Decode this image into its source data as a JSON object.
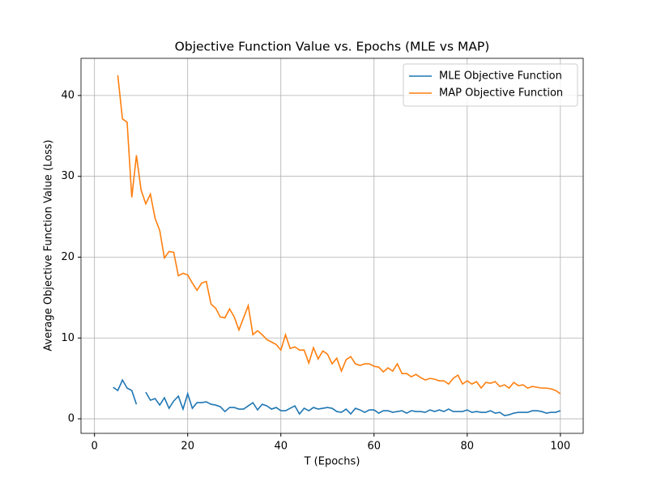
{
  "chart_data": {
    "type": "line",
    "title": "Objective Function Value vs. Epochs (MLE vs MAP)",
    "x_label": "T (Epochs)",
    "y_label": "Average Objective Function Value (Loss)",
    "x": [
      4,
      5,
      6,
      7,
      8,
      9,
      10,
      11,
      12,
      13,
      14,
      15,
      16,
      17,
      18,
      19,
      20,
      21,
      22,
      23,
      24,
      25,
      26,
      27,
      28,
      29,
      30,
      31,
      32,
      33,
      34,
      35,
      36,
      37,
      38,
      39,
      40,
      41,
      42,
      43,
      44,
      45,
      46,
      47,
      48,
      49,
      50,
      51,
      52,
      53,
      54,
      55,
      56,
      57,
      58,
      59,
      60,
      61,
      62,
      63,
      64,
      65,
      66,
      67,
      68,
      69,
      70,
      71,
      72,
      73,
      74,
      75,
      76,
      77,
      78,
      79,
      80,
      81,
      82,
      83,
      84,
      85,
      86,
      87,
      88,
      89,
      90,
      91,
      92,
      93,
      94,
      95,
      96,
      97,
      98,
      99,
      100
    ],
    "series": [
      {
        "name": "MLE Objective Function",
        "color": "#1f77b4",
        "values": [
          3.9,
          3.5,
          4.8,
          3.8,
          3.5,
          1.8,
          null,
          3.3,
          2.3,
          2.5,
          1.7,
          2.6,
          1.3,
          2.2,
          2.8,
          1.2,
          3.1,
          1.3,
          2.0,
          2.0,
          2.1,
          1.8,
          1.7,
          1.5,
          0.9,
          1.4,
          1.4,
          1.2,
          1.2,
          1.6,
          2.0,
          1.1,
          1.8,
          1.6,
          1.2,
          1.4,
          1.0,
          1.0,
          1.3,
          1.6,
          0.6,
          1.3,
          1.0,
          1.4,
          1.2,
          1.3,
          1.4,
          1.3,
          0.9,
          0.8,
          1.2,
          0.6,
          1.3,
          1.1,
          0.8,
          1.1,
          1.1,
          0.7,
          1.0,
          1.0,
          0.8,
          0.9,
          1.0,
          0.7,
          1.0,
          0.9,
          0.9,
          0.8,
          1.1,
          0.9,
          1.1,
          0.9,
          1.2,
          0.9,
          0.9,
          0.9,
          1.1,
          0.8,
          0.9,
          0.8,
          0.8,
          1.0,
          0.7,
          0.8,
          0.4,
          0.5,
          0.7,
          0.8,
          0.8,
          0.8,
          1.0,
          1.0,
          0.9,
          0.7,
          0.8,
          0.8,
          1.0
        ]
      },
      {
        "name": "MAP Objective Function",
        "color": "#ff7f0e",
        "values": [
          null,
          42.5,
          37.1,
          36.7,
          27.4,
          32.6,
          28.3,
          26.6,
          27.8,
          24.8,
          23.3,
          19.9,
          20.7,
          20.6,
          17.7,
          18.0,
          17.8,
          16.8,
          15.9,
          16.8,
          17.0,
          14.2,
          13.7,
          12.6,
          12.5,
          13.6,
          12.6,
          11.0,
          12.5,
          14.0,
          10.4,
          10.9,
          10.4,
          9.8,
          9.5,
          9.2,
          8.5,
          10.4,
          8.7,
          8.9,
          8.5,
          8.5,
          6.9,
          8.8,
          7.4,
          8.4,
          8.0,
          6.8,
          7.5,
          5.9,
          7.3,
          7.7,
          6.8,
          6.6,
          6.8,
          6.8,
          6.5,
          6.4,
          5.8,
          6.3,
          5.9,
          6.8,
          5.6,
          5.6,
          5.2,
          5.5,
          5.1,
          4.8,
          5.0,
          4.9,
          4.7,
          4.7,
          4.3,
          5.0,
          5.4,
          4.3,
          4.7,
          4.3,
          4.6,
          3.8,
          4.5,
          4.4,
          4.6,
          4.0,
          4.2,
          3.8,
          4.5,
          4.1,
          4.2,
          3.8,
          4.0,
          3.9,
          3.8,
          3.8,
          3.7,
          3.5,
          3.1
        ]
      }
    ],
    "xlim": [
      -2.9,
      104.9
    ],
    "ylim": [
      -1.8,
      44.6
    ],
    "xticks": [
      0,
      20,
      40,
      60,
      80,
      100
    ],
    "yticks": [
      0,
      10,
      20,
      30,
      40
    ],
    "grid": true,
    "legend": "upper right"
  }
}
